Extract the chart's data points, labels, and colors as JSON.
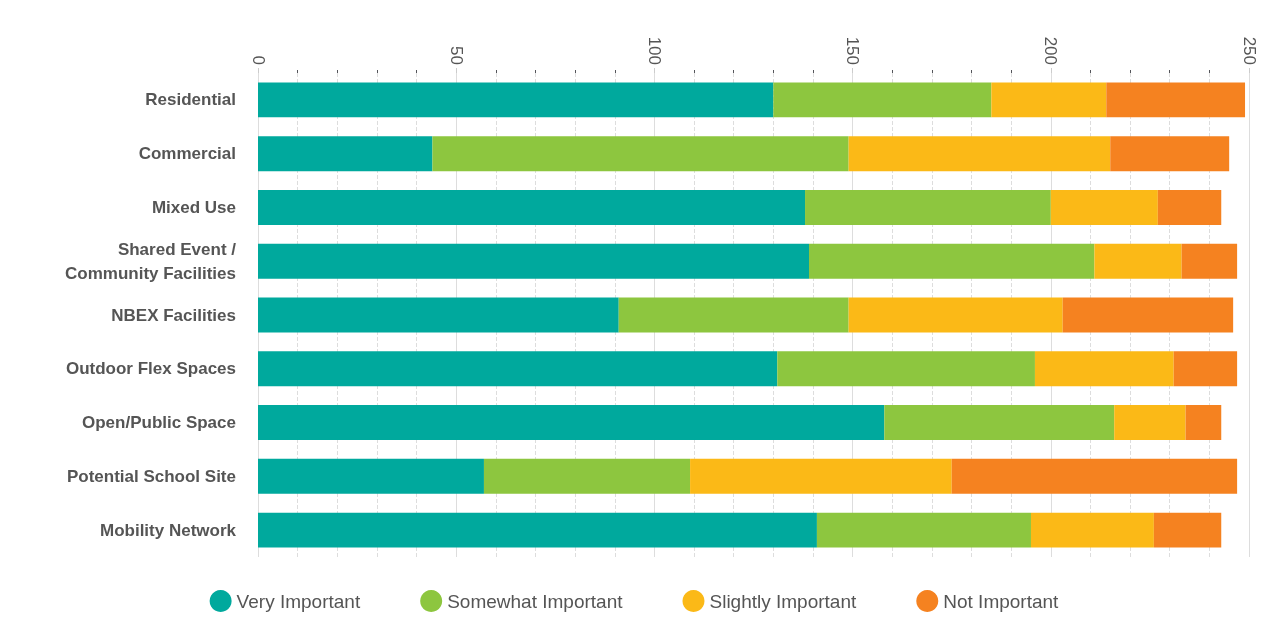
{
  "chart_data": {
    "type": "bar",
    "orientation": "horizontal",
    "stacked": true,
    "categories": [
      "Residential",
      "Commercial",
      "Mixed Use",
      "Shared Event /\nCommunity Facilities",
      "NBEX Facilities",
      "Outdoor Flex Spaces",
      "Open/Public Space",
      "Potential School Site",
      "Mobility Network"
    ],
    "series": [
      {
        "name": "Very Important",
        "color": "#00a99d",
        "values": [
          130,
          44,
          138,
          139,
          91,
          131,
          158,
          57,
          141
        ]
      },
      {
        "name": "Somewhat Important",
        "color": "#8dc63f",
        "values": [
          55,
          105,
          62,
          72,
          58,
          65,
          58,
          52,
          54
        ]
      },
      {
        "name": "Slightly Important",
        "color": "#fbb917",
        "values": [
          29,
          66,
          27,
          22,
          54,
          35,
          18,
          66,
          31
        ]
      },
      {
        "name": "Not Important",
        "color": "#f58220",
        "values": [
          35,
          30,
          16,
          14,
          43,
          16,
          9,
          72,
          17
        ]
      }
    ],
    "xlim": [
      0,
      250
    ],
    "xticks": [
      0,
      50,
      100,
      150,
      200,
      250
    ],
    "grid": "x",
    "legend": "bottom"
  }
}
